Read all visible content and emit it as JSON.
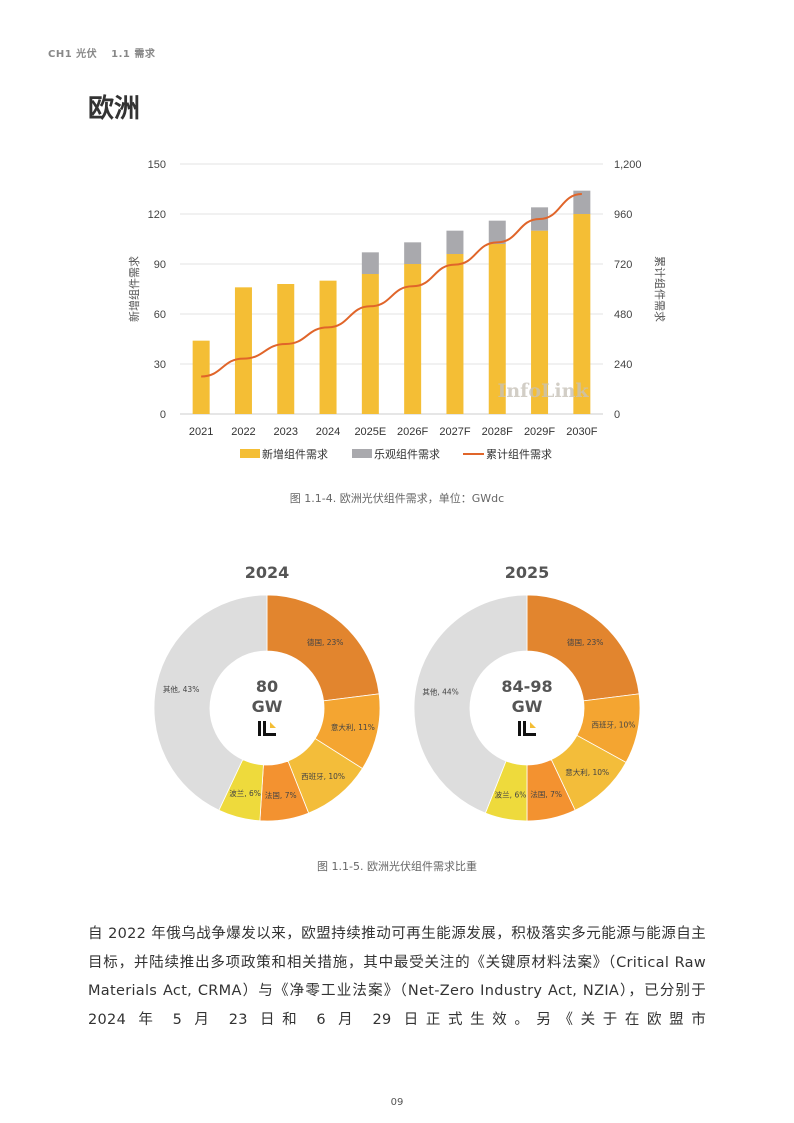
{
  "header": {
    "chapter": "CH1 光伏",
    "section": "1.1 需求"
  },
  "page_title": "欧洲",
  "chart_data": [
    {
      "type": "bar",
      "stacked": true,
      "categories": [
        "2021",
        "2022",
        "2023",
        "2024",
        "2025E",
        "2026F",
        "2027F",
        "2028F",
        "2029F",
        "2030F"
      ],
      "series": [
        {
          "name": "新增组件需求",
          "type": "bar",
          "axis": "left",
          "color": "#F4BE35",
          "values": [
            44,
            76,
            78,
            80,
            84,
            90,
            96,
            102,
            110,
            120
          ]
        },
        {
          "name": "乐观组件需求",
          "type": "bar",
          "axis": "left",
          "color": "#A9A9AD",
          "values": [
            0,
            0,
            0,
            0,
            13,
            13,
            14,
            14,
            14,
            14
          ]
        },
        {
          "name": "累计组件需求",
          "type": "line",
          "axis": "right",
          "color": "#E0652A",
          "values": [
            180,
            266,
            336,
            416,
            517,
            613,
            717,
            824,
            936,
            1056
          ]
        }
      ],
      "ylabel": "新增组件需求",
      "y2label": "累计组件需求",
      "ylim": [
        0,
        150
      ],
      "yticks": [
        "0",
        "30",
        "60",
        "90",
        "120",
        "150"
      ],
      "y2lim": [
        0,
        1200
      ],
      "y2ticks": [
        "0",
        "240",
        "480",
        "720",
        "960",
        "1,200"
      ],
      "grid": true,
      "legend": "bottom",
      "watermark": "InfoLink",
      "caption": "图 1.1-4. 欧洲光伏组件需求，单位：GWdc"
    },
    {
      "type": "pie",
      "title": "2024",
      "center_value": "80",
      "center_unit": "GW",
      "slices": [
        {
          "label": "德国, 23%",
          "value": 23,
          "color": "#E2852E"
        },
        {
          "label": "意大利, 11%",
          "value": 11,
          "color": "#F4A531"
        },
        {
          "label": "西班牙, 10%",
          "value": 10,
          "color": "#F3BD3A"
        },
        {
          "label": "法国, 7%",
          "value": 7,
          "color": "#F39230"
        },
        {
          "label": "波兰, 6%",
          "value": 6,
          "color": "#EEDA3C"
        },
        {
          "label": "其他, 43%",
          "value": 43,
          "color": "#DDDDDD"
        }
      ]
    },
    {
      "type": "pie",
      "title": "2025",
      "center_value": "84-98",
      "center_unit": "GW",
      "slices": [
        {
          "label": "德国, 23%",
          "value": 23,
          "color": "#E2852E"
        },
        {
          "label": "西班牙, 10%",
          "value": 10,
          "color": "#F4A531"
        },
        {
          "label": "意大利, 10%",
          "value": 10,
          "color": "#F3BD3A"
        },
        {
          "label": "法国, 7%",
          "value": 7,
          "color": "#F39230"
        },
        {
          "label": "波兰, 6%",
          "value": 6,
          "color": "#EEDA3C"
        },
        {
          "label": "其他, 44%",
          "value": 44,
          "color": "#DDDDDD"
        }
      ]
    }
  ],
  "pie_caption": "图 1.1-5. 欧洲光伏组件需求比重",
  "paragraph": "自 2022 年俄乌战争爆发以来，欧盟持续推动可再生能源发展，积极落实多元能源与能源自主目标，并陆续推出多项政策和相关措施，其中最受关注的《关键原材料法案》（Critical Raw Materials Act, CRMA）与《净零工业法案》（Net-Zero Industry Act, NZIA），已分别于 2024 年 5 月 23 日和 6 月 29 日正式生效。另《关于在欧盟市",
  "page_number": "09"
}
